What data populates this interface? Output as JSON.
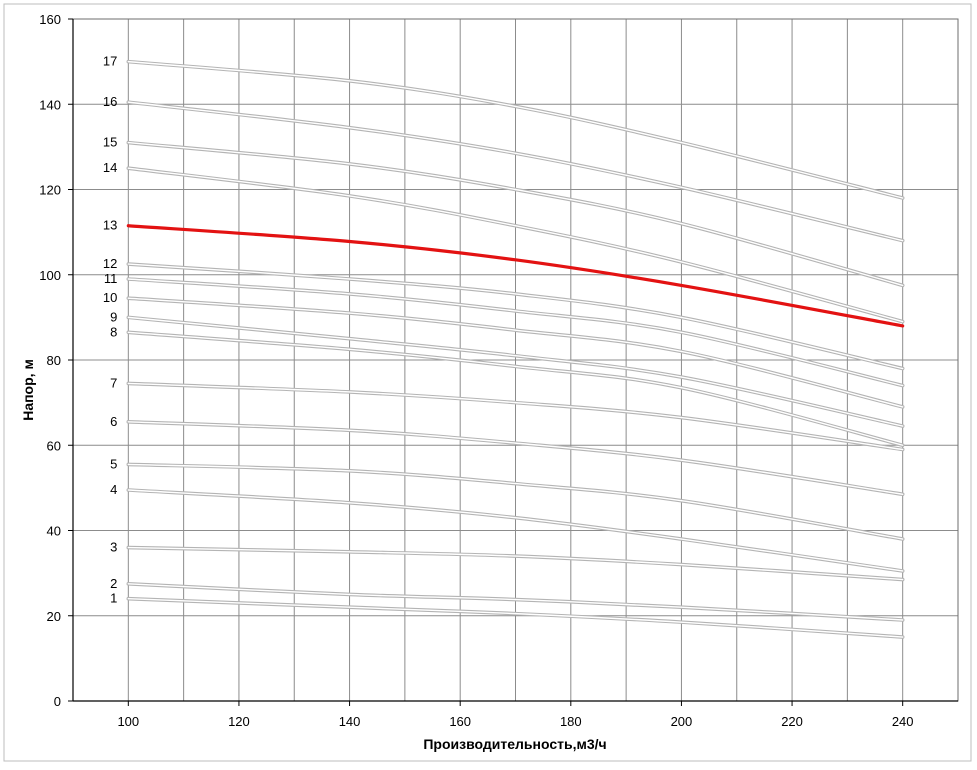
{
  "chart_data": {
    "type": "line",
    "title": "",
    "xlabel": "Производительность,м3/ч",
    "ylabel": "Напор, м",
    "xlim": [
      90,
      250
    ],
    "ylim": [
      0,
      160
    ],
    "x_ticks": [
      "100",
      "120",
      "140",
      "160",
      "180",
      "200",
      "220",
      "240"
    ],
    "y_ticks": [
      "0",
      "20",
      "40",
      "60",
      "80",
      "100",
      "120",
      "140",
      "160"
    ],
    "grid": true,
    "legend": "none",
    "highlight_color": "#e31212",
    "line_color": "#b4b4b4",
    "x": [
      100,
      140,
      170,
      200,
      240
    ],
    "series": [
      {
        "label": "1",
        "values": [
          24.0,
          22.0,
          20.5,
          18.5,
          15.0
        ],
        "highlight": false
      },
      {
        "label": "2",
        "values": [
          27.5,
          25.0,
          23.8,
          22.0,
          19.0
        ],
        "highlight": false
      },
      {
        "label": "3",
        "values": [
          36.0,
          35.0,
          34.0,
          32.0,
          28.5
        ],
        "highlight": false
      },
      {
        "label": "4",
        "values": [
          49.5,
          46.5,
          43.0,
          38.0,
          30.5
        ],
        "highlight": false
      },
      {
        "label": "5",
        "values": [
          55.5,
          54.0,
          51.0,
          47.0,
          38.0
        ],
        "highlight": false
      },
      {
        "label": "6",
        "values": [
          65.5,
          63.5,
          60.5,
          56.5,
          48.5
        ],
        "highlight": false
      },
      {
        "label": "7",
        "values": [
          74.5,
          72.5,
          70.0,
          66.5,
          59.0
        ],
        "highlight": false
      },
      {
        "label": "8",
        "values": [
          86.5,
          82.5,
          78.5,
          73.5,
          60.0
        ],
        "highlight": false
      },
      {
        "label": "9",
        "values": [
          90.0,
          85.0,
          81.0,
          76.0,
          64.5
        ],
        "highlight": false
      },
      {
        "label": "10",
        "values": [
          94.5,
          91.0,
          87.0,
          82.0,
          69.0
        ],
        "highlight": false
      },
      {
        "label": "11",
        "values": [
          99.0,
          95.5,
          91.5,
          86.5,
          74.0
        ],
        "highlight": false
      },
      {
        "label": "12",
        "values": [
          102.5,
          99.0,
          95.5,
          90.0,
          78.0
        ],
        "highlight": false
      },
      {
        "label": "13",
        "values": [
          111.5,
          107.8,
          103.5,
          97.5,
          88.0
        ],
        "highlight": true
      },
      {
        "label": "14",
        "values": [
          125.0,
          118.5,
          111.5,
          103.0,
          89.0
        ],
        "highlight": false
      },
      {
        "label": "15",
        "values": [
          131.0,
          126.0,
          120.0,
          112.0,
          97.5
        ],
        "highlight": false
      },
      {
        "label": "16",
        "values": [
          140.5,
          134.5,
          128.5,
          120.5,
          108.0
        ],
        "highlight": false
      },
      {
        "label": "17",
        "values": [
          150.0,
          145.5,
          139.5,
          131.0,
          118.0
        ],
        "highlight": false
      }
    ]
  }
}
